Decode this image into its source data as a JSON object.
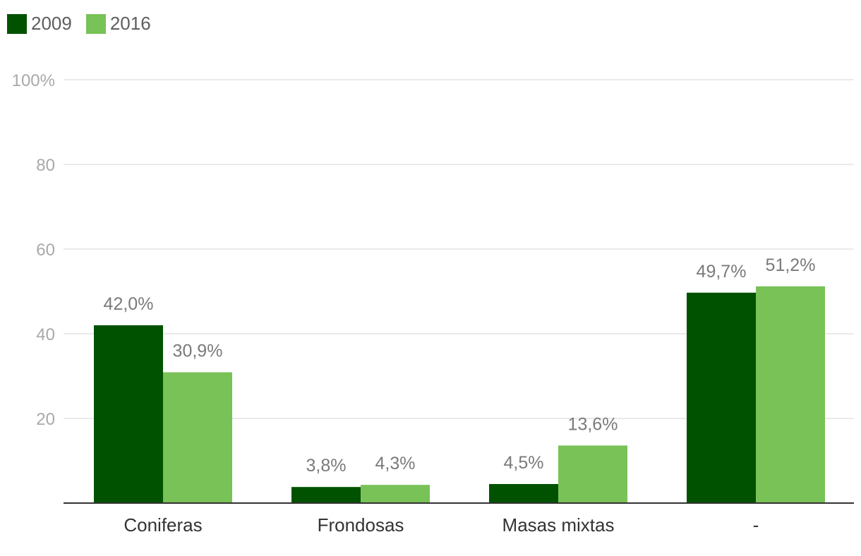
{
  "legend": [
    {
      "label": "2009",
      "color": "#005200"
    },
    {
      "label": "2016",
      "color": "#79c257"
    }
  ],
  "chart_data": {
    "type": "bar",
    "categories": [
      "Coniferas",
      "Frondosas",
      "Masas mixtas",
      "-"
    ],
    "series": [
      {
        "name": "2009",
        "color": "#005200",
        "values": [
          42.0,
          3.8,
          4.5,
          49.7
        ],
        "labels": [
          "42,0%",
          "3,8%",
          "4,5%",
          "49,7%"
        ]
      },
      {
        "name": "2016",
        "color": "#79c257",
        "values": [
          30.9,
          4.3,
          13.6,
          51.2
        ],
        "labels": [
          "30,9%",
          "4,3%",
          "13,6%",
          "51,2%"
        ]
      }
    ],
    "ylim": [
      0,
      100
    ],
    "yticks": [
      {
        "value": 20,
        "label": "20"
      },
      {
        "value": 40,
        "label": "40"
      },
      {
        "value": 60,
        "label": "60"
      },
      {
        "value": 80,
        "label": "80"
      },
      {
        "value": 100,
        "label": "100%"
      }
    ],
    "grid": true,
    "legend_position": "top-left",
    "title": "",
    "xlabel": "",
    "ylabel": ""
  }
}
